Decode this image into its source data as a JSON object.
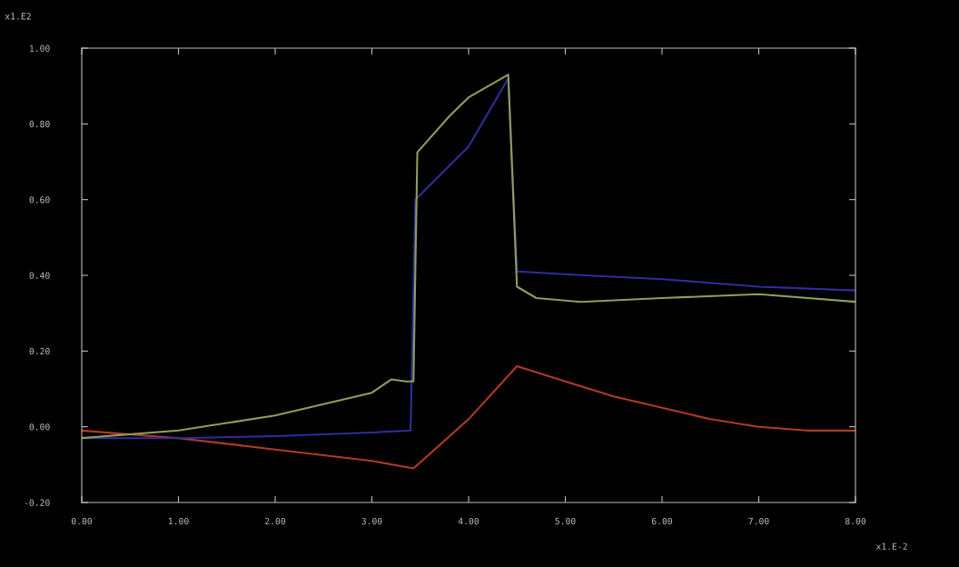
{
  "chart_data": {
    "type": "line",
    "xlim": [
      0,
      8
    ],
    "ylim": [
      -0.2,
      1.0
    ],
    "xticks": [
      {
        "value": 0,
        "label": "0.00"
      },
      {
        "value": 1,
        "label": "1.00"
      },
      {
        "value": 2,
        "label": "2.00"
      },
      {
        "value": 3,
        "label": "3.00"
      },
      {
        "value": 4,
        "label": "4.00"
      },
      {
        "value": 5,
        "label": "5.00"
      },
      {
        "value": 6,
        "label": "6.00"
      },
      {
        "value": 7,
        "label": "7.00"
      },
      {
        "value": 8,
        "label": "8.00"
      }
    ],
    "yticks": [
      {
        "value": -0.2,
        "label": "-0.20"
      },
      {
        "value": 0,
        "label": "0.00"
      },
      {
        "value": 0.2,
        "label": "0.20"
      },
      {
        "value": 0.4,
        "label": "0.40"
      },
      {
        "value": 0.6,
        "label": "0.60"
      },
      {
        "value": 0.8,
        "label": "0.80"
      },
      {
        "value": 1.0,
        "label": "1.00"
      }
    ],
    "grid": false,
    "legend": false,
    "annotations": [
      "x1.E2",
      "x1.E-2"
    ],
    "series": [
      {
        "color": "#b03a2a",
        "x": [
          0,
          1,
          2,
          3,
          3.43,
          4,
          4.5,
          5,
          5.5,
          6,
          6.5,
          7,
          7.5,
          8
        ],
        "values": [
          -0.01,
          -0.03,
          -0.06,
          -0.09,
          -0.11,
          0.02,
          0.16,
          0.12,
          0.08,
          0.05,
          0.02,
          0.0,
          -0.01,
          -0.01
        ]
      },
      {
        "color": "#2e2e9e",
        "x": [
          0,
          1,
          2,
          3,
          3.4,
          3.45,
          4.0,
          4.41,
          4.5,
          5.2,
          6,
          7,
          8
        ],
        "values": [
          -0.03,
          -0.03,
          -0.025,
          -0.015,
          -0.01,
          0.6,
          0.74,
          0.92,
          0.41,
          0.4,
          0.39,
          0.37,
          0.36
        ]
      },
      {
        "color": "#8e9e5a",
        "x": [
          0,
          1,
          2,
          3,
          3.2,
          3.35,
          3.43,
          3.47,
          3.8,
          4.0,
          4.41,
          4.5,
          4.7,
          5.16,
          6,
          7,
          8
        ],
        "values": [
          -0.03,
          -0.01,
          0.03,
          0.09,
          0.125,
          0.12,
          0.12,
          0.725,
          0.82,
          0.87,
          0.93,
          0.37,
          0.34,
          0.33,
          0.34,
          0.35,
          0.33
        ]
      }
    ]
  }
}
